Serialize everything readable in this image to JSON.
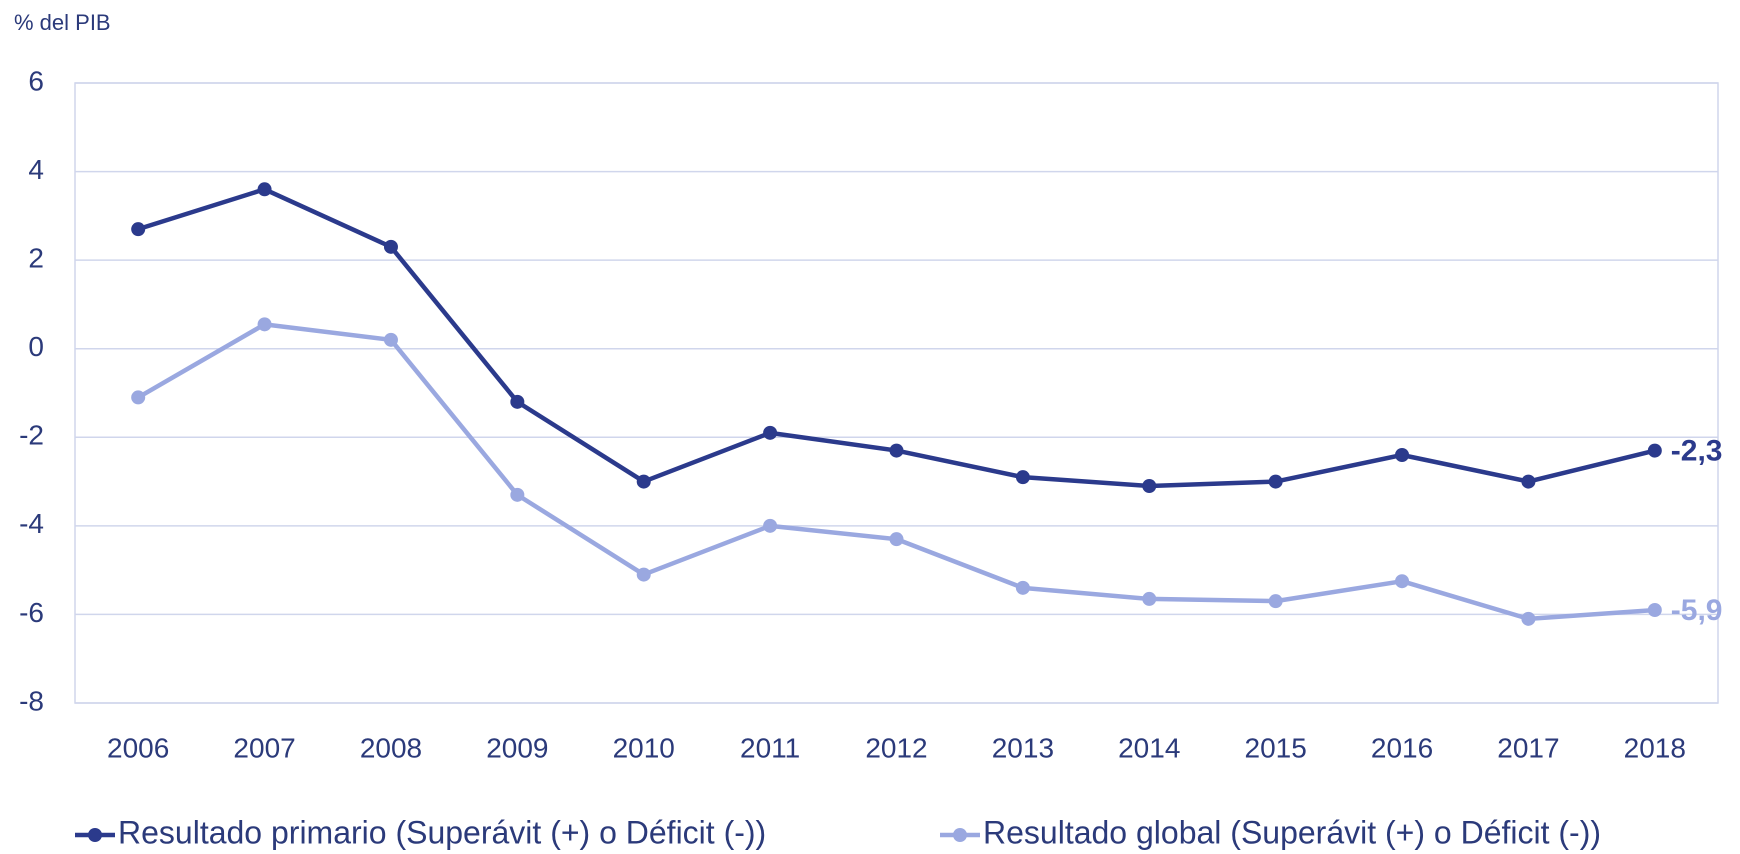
{
  "chart_data": {
    "type": "line",
    "y_axis_label": "% del PIB",
    "categories": [
      "2006",
      "2007",
      "2008",
      "2009",
      "2010",
      "2011",
      "2012",
      "2013",
      "2014",
      "2015",
      "2016",
      "2017",
      "2018"
    ],
    "series": [
      {
        "name": "Resultado primario (Superávit (+) o Déficit (-))",
        "color": "#2b3a8c",
        "values": [
          2.7,
          3.6,
          2.3,
          -1.2,
          -3.0,
          -1.9,
          -2.3,
          -2.9,
          -3.1,
          -3.0,
          -2.4,
          -3.0,
          -2.3
        ],
        "value_labels": [
          null,
          null,
          null,
          null,
          null,
          null,
          null,
          null,
          null,
          null,
          null,
          null,
          "-2,3"
        ]
      },
      {
        "name": "Resultado global (Superávit (+) o Déficit (-))",
        "color": "#9aa8e0",
        "values": [
          -1.1,
          0.55,
          0.2,
          -3.3,
          -5.1,
          -4.0,
          -4.3,
          -5.4,
          -5.65,
          -5.7,
          -5.25,
          -6.1,
          -5.9
        ],
        "value_labels": [
          null,
          null,
          null,
          null,
          null,
          null,
          null,
          null,
          null,
          null,
          null,
          null,
          "-5,9"
        ]
      }
    ],
    "ylim": [
      -8,
      6
    ],
    "yticks": [
      -8,
      -6,
      -4,
      -2,
      0,
      2,
      4,
      6
    ],
    "grid": true,
    "legend": "bottom"
  }
}
